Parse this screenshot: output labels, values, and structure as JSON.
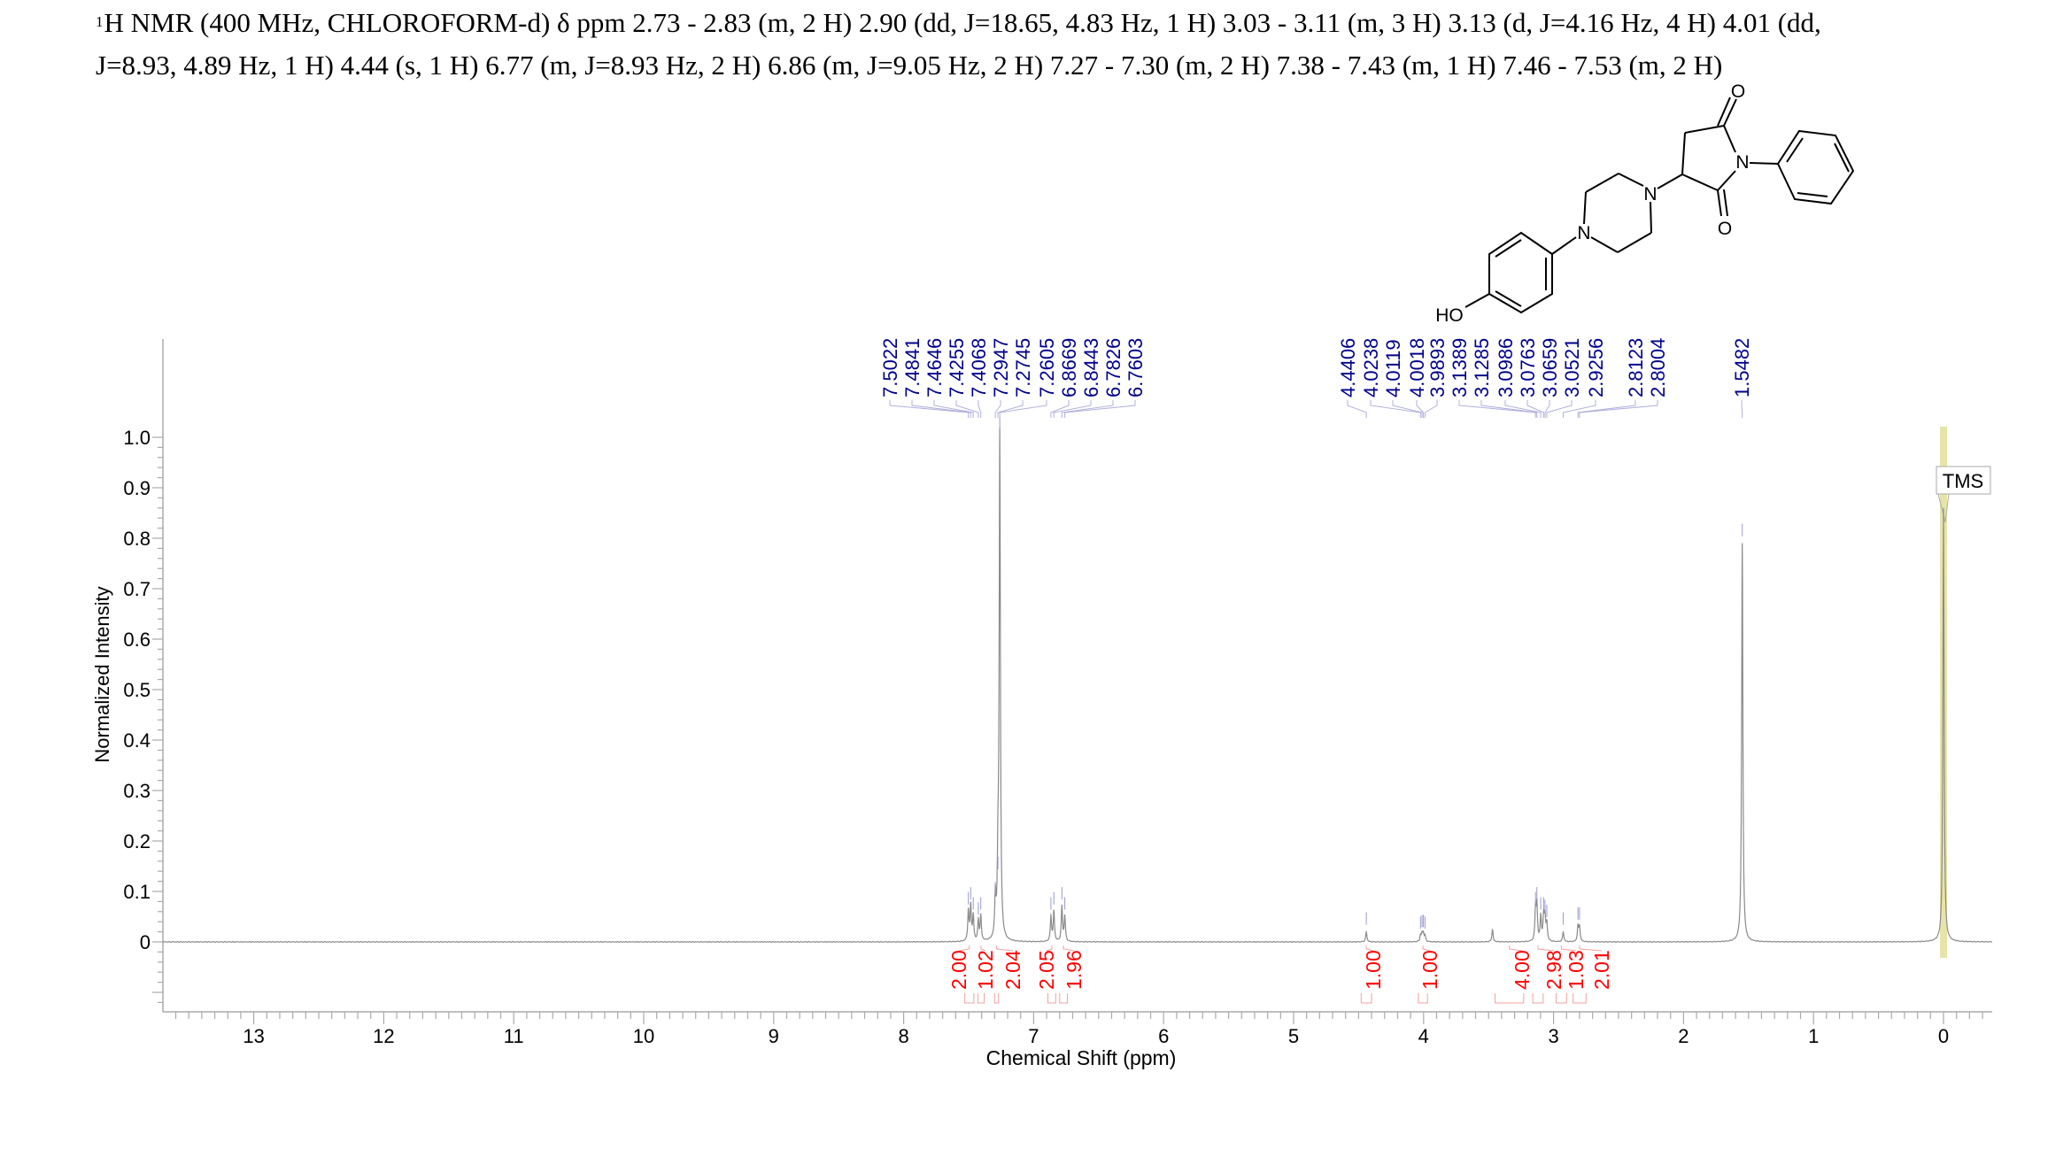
{
  "title": {
    "superscript": "1",
    "line1": "H NMR (400 MHz, CHLOROFORM-d) δ ppm 2.73 - 2.83 (m, 2 H) 2.90 (dd, J=18.65, 4.83 Hz, 1 H) 3.03 - 3.11 (m, 3 H) 3.13 (d,  J=4.16 Hz, 4 H) 4.01 (dd,",
    "line2": "J=8.93, 4.89 Hz, 1 H) 4.44 (s, 1 H) 6.77 (m,  J=8.93 Hz, 2 H) 6.86 (m, J=9.05 Hz, 2 H) 7.27 - 7.30 (m, 2 H) 7.38 - 7.43 (m, 1 H) 7.46 - 7.53 (m, 2 H)"
  },
  "structure": {
    "atom_labels": [
      "O",
      "N",
      "O",
      "N",
      "N",
      "HO"
    ]
  },
  "chart_data": {
    "type": "line",
    "xlabel": "Chemical Shift (ppm)",
    "ylabel": "Normalized Intensity",
    "xlim": [
      13.7,
      -0.35
    ],
    "ylim": [
      -0.13,
      1.0
    ],
    "x_reversed": true,
    "x_ticks": [
      "13",
      "12",
      "11",
      "10",
      "9",
      "8",
      "7",
      "6",
      "5",
      "4",
      "3",
      "2",
      "1",
      "0"
    ],
    "y_ticks": [
      "0",
      "0.1",
      "0.2",
      "0.3",
      "0.4",
      "0.5",
      "0.6",
      "0.7",
      "0.8",
      "0.9",
      "1.0"
    ],
    "grid": false,
    "peaks": [
      {
        "ppm": 7.5022,
        "intensity": 0.06,
        "label": "7.5022"
      },
      {
        "ppm": 7.4841,
        "intensity": 0.07,
        "label": "7.4841"
      },
      {
        "ppm": 7.4646,
        "intensity": 0.05,
        "label": "7.4646"
      },
      {
        "ppm": 7.4255,
        "intensity": 0.04,
        "label": "7.4255"
      },
      {
        "ppm": 7.4068,
        "intensity": 0.05,
        "label": "7.4068"
      },
      {
        "ppm": 7.2947,
        "intensity": 0.08,
        "label": "7.2947"
      },
      {
        "ppm": 7.2745,
        "intensity": 0.13,
        "label": "7.2745"
      },
      {
        "ppm": 7.2605,
        "intensity": 1.0,
        "label": "7.2605"
      },
      {
        "ppm": 6.8669,
        "intensity": 0.05,
        "label": "6.8669"
      },
      {
        "ppm": 6.8443,
        "intensity": 0.06,
        "label": "6.8443"
      },
      {
        "ppm": 6.7826,
        "intensity": 0.07,
        "label": "6.7826"
      },
      {
        "ppm": 6.7603,
        "intensity": 0.05,
        "label": "6.7603"
      },
      {
        "ppm": 4.4406,
        "intensity": 0.02,
        "label": "4.4406"
      },
      {
        "ppm": 4.0238,
        "intensity": 0.012,
        "label": "4.0238"
      },
      {
        "ppm": 4.0119,
        "intensity": 0.015,
        "label": "4.0119"
      },
      {
        "ppm": 4.0018,
        "intensity": 0.015,
        "label": "4.0018"
      },
      {
        "ppm": 3.9893,
        "intensity": 0.012,
        "label": "3.9893"
      },
      {
        "ppm": 3.47,
        "intensity": 0.025,
        "label": ""
      },
      {
        "ppm": 3.1389,
        "intensity": 0.06,
        "label": "3.1389"
      },
      {
        "ppm": 3.1285,
        "intensity": 0.07,
        "label": "3.1285"
      },
      {
        "ppm": 3.0986,
        "intensity": 0.05,
        "label": "3.0986"
      },
      {
        "ppm": 3.0763,
        "intensity": 0.05,
        "label": "3.0763"
      },
      {
        "ppm": 3.0659,
        "intensity": 0.045,
        "label": "3.0659"
      },
      {
        "ppm": 3.0521,
        "intensity": 0.035,
        "label": "3.0521"
      },
      {
        "ppm": 2.9256,
        "intensity": 0.02,
        "label": "2.9256"
      },
      {
        "ppm": 2.8123,
        "intensity": 0.03,
        "label": "2.8123"
      },
      {
        "ppm": 2.8004,
        "intensity": 0.03,
        "label": "2.8004"
      },
      {
        "ppm": 1.5482,
        "intensity": 0.79,
        "label": "1.5482"
      },
      {
        "ppm": 0.0,
        "intensity": 0.86,
        "label": ""
      }
    ],
    "integrals": [
      {
        "from": 7.53,
        "to": 7.46,
        "value": "2.00"
      },
      {
        "from": 7.43,
        "to": 7.38,
        "value": "1.02"
      },
      {
        "from": 7.3,
        "to": 7.27,
        "value": "2.04"
      },
      {
        "from": 6.89,
        "to": 6.83,
        "value": "2.05"
      },
      {
        "from": 6.8,
        "to": 6.74,
        "value": "1.96"
      },
      {
        "from": 4.48,
        "to": 4.4,
        "value": "1.00"
      },
      {
        "from": 4.04,
        "to": 3.97,
        "value": "1.00"
      },
      {
        "from": 3.45,
        "to": 3.23,
        "value": "4.00"
      },
      {
        "from": 3.16,
        "to": 3.08,
        "value": "2.98"
      },
      {
        "from": 2.98,
        "to": 2.9,
        "value": "1.03"
      },
      {
        "from": 2.85,
        "to": 2.75,
        "value": "2.01"
      }
    ],
    "annotations": [
      {
        "ppm": 0.0,
        "text": "TMS"
      }
    ],
    "colors": {
      "spectrum": "#8a8a8a",
      "peak_labels": "#00008b",
      "integrals": "#ff0000",
      "tms_band": "#e6e4a8"
    }
  }
}
